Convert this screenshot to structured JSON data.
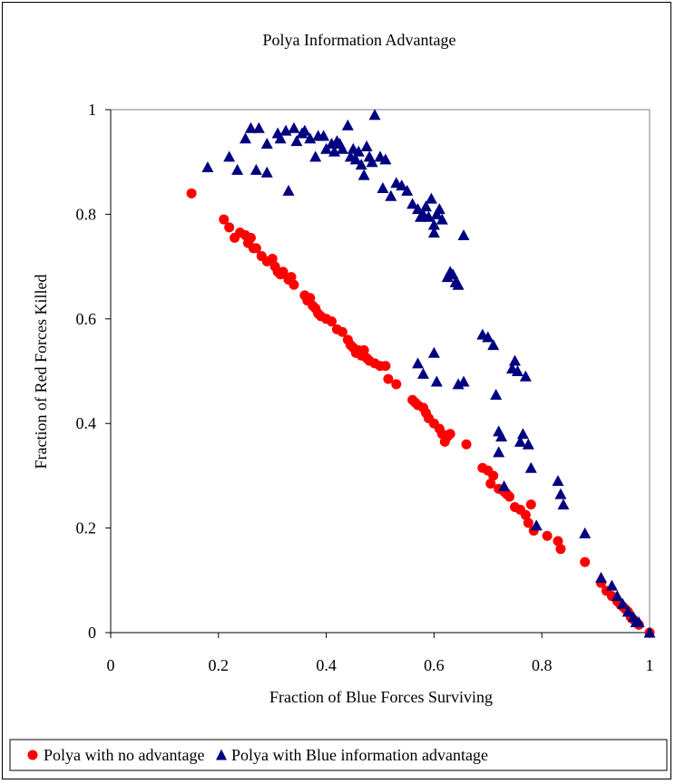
{
  "chart_data": {
    "type": "scatter",
    "title": "Polya Information Advantage",
    "xlabel": "Fraction of Blue Forces Surviving",
    "ylabel": "Fraction of Red Forces Killed",
    "xlim": [
      0,
      1
    ],
    "ylim": [
      0,
      1
    ],
    "x_ticks": [
      0,
      0.2,
      0.4,
      0.6,
      0.8,
      1
    ],
    "y_ticks": [
      0,
      0.2,
      0.4,
      0.6,
      0.8,
      1
    ],
    "x_tick_labels": [
      "0",
      "0.2",
      "0.4",
      "0.6",
      "0.8",
      "1"
    ],
    "y_tick_labels": [
      "0",
      "0.2",
      "0.4",
      "0.6",
      "0.8",
      "1"
    ],
    "grid": false,
    "legend_position": "bottom",
    "series": [
      {
        "name": "Polya with no advantage",
        "marker": "circle",
        "color": "#ff0000",
        "points": [
          [
            0.15,
            0.84
          ],
          [
            0.21,
            0.79
          ],
          [
            0.22,
            0.775
          ],
          [
            0.23,
            0.755
          ],
          [
            0.24,
            0.765
          ],
          [
            0.25,
            0.76
          ],
          [
            0.255,
            0.745
          ],
          [
            0.26,
            0.755
          ],
          [
            0.265,
            0.735
          ],
          [
            0.27,
            0.735
          ],
          [
            0.28,
            0.72
          ],
          [
            0.29,
            0.71
          ],
          [
            0.3,
            0.715
          ],
          [
            0.305,
            0.7
          ],
          [
            0.31,
            0.69
          ],
          [
            0.315,
            0.685
          ],
          [
            0.32,
            0.69
          ],
          [
            0.33,
            0.675
          ],
          [
            0.335,
            0.68
          ],
          [
            0.34,
            0.665
          ],
          [
            0.36,
            0.645
          ],
          [
            0.365,
            0.635
          ],
          [
            0.37,
            0.64
          ],
          [
            0.375,
            0.625
          ],
          [
            0.38,
            0.62
          ],
          [
            0.385,
            0.61
          ],
          [
            0.39,
            0.605
          ],
          [
            0.4,
            0.6
          ],
          [
            0.41,
            0.595
          ],
          [
            0.42,
            0.58
          ],
          [
            0.43,
            0.575
          ],
          [
            0.44,
            0.56
          ],
          [
            0.445,
            0.55
          ],
          [
            0.45,
            0.545
          ],
          [
            0.455,
            0.535
          ],
          [
            0.46,
            0.54
          ],
          [
            0.465,
            0.53
          ],
          [
            0.47,
            0.54
          ],
          [
            0.475,
            0.525
          ],
          [
            0.48,
            0.52
          ],
          [
            0.49,
            0.515
          ],
          [
            0.5,
            0.51
          ],
          [
            0.51,
            0.51
          ],
          [
            0.515,
            0.485
          ],
          [
            0.53,
            0.475
          ],
          [
            0.56,
            0.445
          ],
          [
            0.565,
            0.44
          ],
          [
            0.57,
            0.435
          ],
          [
            0.58,
            0.43
          ],
          [
            0.585,
            0.42
          ],
          [
            0.59,
            0.41
          ],
          [
            0.6,
            0.4
          ],
          [
            0.61,
            0.39
          ],
          [
            0.615,
            0.38
          ],
          [
            0.62,
            0.365
          ],
          [
            0.625,
            0.375
          ],
          [
            0.63,
            0.38
          ],
          [
            0.66,
            0.36
          ],
          [
            0.69,
            0.315
          ],
          [
            0.7,
            0.31
          ],
          [
            0.705,
            0.285
          ],
          [
            0.71,
            0.3
          ],
          [
            0.72,
            0.275
          ],
          [
            0.73,
            0.27
          ],
          [
            0.735,
            0.265
          ],
          [
            0.74,
            0.26
          ],
          [
            0.75,
            0.24
          ],
          [
            0.76,
            0.235
          ],
          [
            0.77,
            0.225
          ],
          [
            0.775,
            0.21
          ],
          [
            0.78,
            0.245
          ],
          [
            0.785,
            0.195
          ],
          [
            0.81,
            0.185
          ],
          [
            0.83,
            0.175
          ],
          [
            0.835,
            0.16
          ],
          [
            0.88,
            0.135
          ],
          [
            0.91,
            0.095
          ],
          [
            0.92,
            0.08
          ],
          [
            0.93,
            0.07
          ],
          [
            0.94,
            0.06
          ],
          [
            0.945,
            0.055
          ],
          [
            0.95,
            0.05
          ],
          [
            0.955,
            0.045
          ],
          [
            0.96,
            0.04
          ],
          [
            0.965,
            0.03
          ],
          [
            0.97,
            0.025
          ],
          [
            0.98,
            0.015
          ],
          [
            1.0,
            0.0
          ]
        ]
      },
      {
        "name": "Polya with Blue information advantage",
        "marker": "triangle",
        "color": "#000080",
        "points": [
          [
            0.18,
            0.89
          ],
          [
            0.22,
            0.91
          ],
          [
            0.235,
            0.885
          ],
          [
            0.25,
            0.945
          ],
          [
            0.26,
            0.965
          ],
          [
            0.27,
            0.885
          ],
          [
            0.275,
            0.965
          ],
          [
            0.29,
            0.88
          ],
          [
            0.29,
            0.935
          ],
          [
            0.31,
            0.955
          ],
          [
            0.315,
            0.945
          ],
          [
            0.325,
            0.96
          ],
          [
            0.33,
            0.845
          ],
          [
            0.34,
            0.965
          ],
          [
            0.345,
            0.94
          ],
          [
            0.355,
            0.955
          ],
          [
            0.36,
            0.96
          ],
          [
            0.37,
            0.945
          ],
          [
            0.38,
            0.91
          ],
          [
            0.385,
            0.95
          ],
          [
            0.395,
            0.95
          ],
          [
            0.4,
            0.925
          ],
          [
            0.41,
            0.935
          ],
          [
            0.415,
            0.92
          ],
          [
            0.42,
            0.94
          ],
          [
            0.425,
            0.935
          ],
          [
            0.43,
            0.925
          ],
          [
            0.44,
            0.97
          ],
          [
            0.445,
            0.91
          ],
          [
            0.45,
            0.925
          ],
          [
            0.455,
            0.905
          ],
          [
            0.46,
            0.92
          ],
          [
            0.465,
            0.895
          ],
          [
            0.47,
            0.875
          ],
          [
            0.475,
            0.93
          ],
          [
            0.48,
            0.91
          ],
          [
            0.485,
            0.9
          ],
          [
            0.49,
            0.99
          ],
          [
            0.5,
            0.91
          ],
          [
            0.505,
            0.85
          ],
          [
            0.51,
            0.905
          ],
          [
            0.52,
            0.835
          ],
          [
            0.53,
            0.86
          ],
          [
            0.54,
            0.855
          ],
          [
            0.55,
            0.845
          ],
          [
            0.56,
            0.82
          ],
          [
            0.57,
            0.81
          ],
          [
            0.575,
            0.795
          ],
          [
            0.58,
            0.8
          ],
          [
            0.585,
            0.815
          ],
          [
            0.59,
            0.795
          ],
          [
            0.595,
            0.83
          ],
          [
            0.6,
            0.78
          ],
          [
            0.605,
            0.8
          ],
          [
            0.61,
            0.81
          ],
          [
            0.615,
            0.79
          ],
          [
            0.6,
            0.765
          ],
          [
            0.625,
            0.68
          ],
          [
            0.63,
            0.69
          ],
          [
            0.635,
            0.685
          ],
          [
            0.64,
            0.67
          ],
          [
            0.645,
            0.665
          ],
          [
            0.655,
            0.76
          ],
          [
            0.57,
            0.515
          ],
          [
            0.58,
            0.495
          ],
          [
            0.6,
            0.535
          ],
          [
            0.605,
            0.48
          ],
          [
            0.645,
            0.475
          ],
          [
            0.655,
            0.48
          ],
          [
            0.69,
            0.57
          ],
          [
            0.7,
            0.565
          ],
          [
            0.71,
            0.55
          ],
          [
            0.715,
            0.455
          ],
          [
            0.72,
            0.385
          ],
          [
            0.725,
            0.375
          ],
          [
            0.745,
            0.505
          ],
          [
            0.75,
            0.52
          ],
          [
            0.755,
            0.5
          ],
          [
            0.76,
            0.365
          ],
          [
            0.765,
            0.38
          ],
          [
            0.77,
            0.49
          ],
          [
            0.775,
            0.36
          ],
          [
            0.78,
            0.315
          ],
          [
            0.72,
            0.345
          ],
          [
            0.73,
            0.28
          ],
          [
            0.79,
            0.205
          ],
          [
            0.83,
            0.29
          ],
          [
            0.835,
            0.265
          ],
          [
            0.84,
            0.245
          ],
          [
            0.88,
            0.19
          ],
          [
            0.91,
            0.105
          ],
          [
            0.93,
            0.09
          ],
          [
            0.94,
            0.07
          ],
          [
            0.95,
            0.055
          ],
          [
            0.96,
            0.04
          ],
          [
            0.97,
            0.03
          ],
          [
            0.975,
            0.02
          ],
          [
            0.98,
            0.02
          ],
          [
            1.0,
            0.0
          ]
        ]
      }
    ]
  }
}
